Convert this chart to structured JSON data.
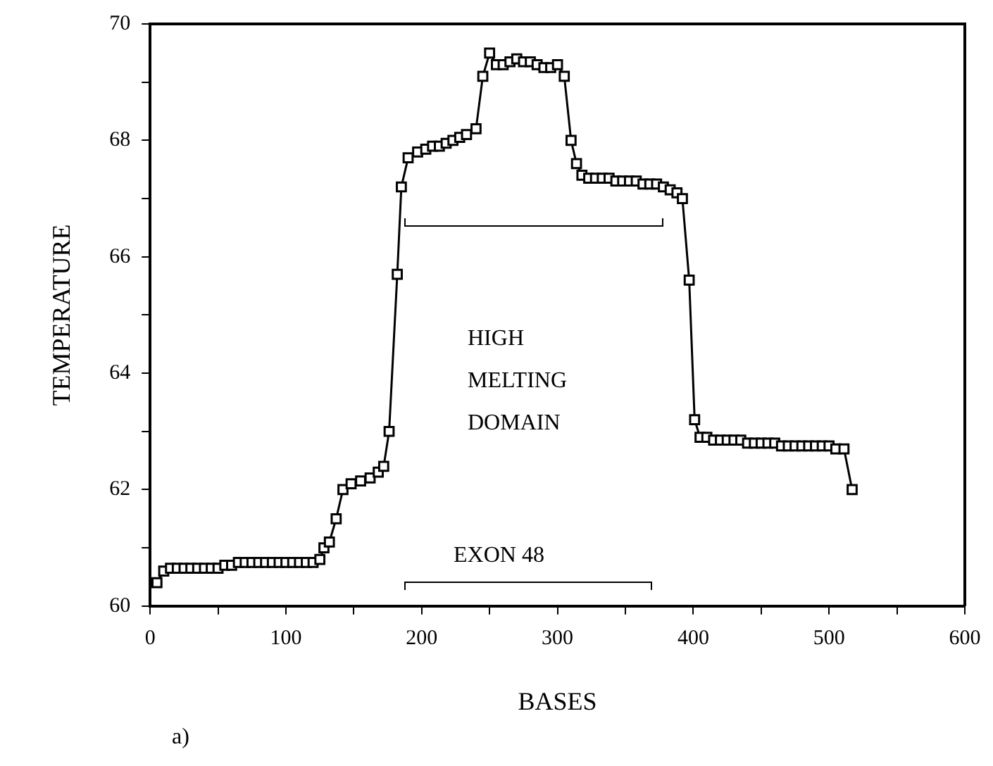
{
  "chart_data": {
    "type": "line",
    "xlabel": "BASES",
    "ylabel": "TEMPERATURE",
    "marker": "square",
    "legend": false,
    "grid": false,
    "x": [
      5,
      10,
      15,
      20,
      25,
      30,
      35,
      40,
      45,
      50,
      55,
      60,
      65,
      70,
      75,
      80,
      85,
      90,
      95,
      100,
      105,
      110,
      115,
      120,
      125,
      128,
      132,
      137,
      142,
      148,
      155,
      162,
      168,
      172,
      176,
      182,
      185,
      190,
      197,
      203,
      208,
      213,
      218,
      223,
      228,
      233,
      240,
      245,
      250,
      255,
      260,
      265,
      270,
      275,
      280,
      285,
      290,
      295,
      300,
      305,
      310,
      314,
      318,
      323,
      328,
      333,
      338,
      343,
      348,
      353,
      358,
      363,
      368,
      373,
      378,
      383,
      388,
      392,
      397,
      401,
      405,
      410,
      415,
      420,
      425,
      430,
      435,
      440,
      445,
      450,
      455,
      460,
      465,
      470,
      475,
      480,
      485,
      490,
      495,
      500,
      505,
      511,
      517
    ],
    "series": [
      {
        "color": "#000000",
        "values": [
          60.4,
          60.6,
          60.65,
          60.65,
          60.65,
          60.65,
          60.65,
          60.65,
          60.65,
          60.65,
          60.7,
          60.7,
          60.75,
          60.75,
          60.75,
          60.75,
          60.75,
          60.75,
          60.75,
          60.75,
          60.75,
          60.75,
          60.75,
          60.75,
          60.8,
          61.0,
          61.1,
          61.5,
          62.0,
          62.1,
          62.15,
          62.2,
          62.3,
          62.4,
          63.0,
          65.7,
          67.2,
          67.7,
          67.8,
          67.85,
          67.9,
          67.9,
          67.95,
          68.0,
          68.05,
          68.1,
          68.2,
          69.1,
          69.5,
          69.3,
          69.3,
          69.35,
          69.4,
          69.35,
          69.35,
          69.3,
          69.25,
          69.25,
          69.3,
          69.1,
          68.0,
          67.6,
          67.4,
          67.35,
          67.35,
          67.35,
          67.35,
          67.3,
          67.3,
          67.3,
          67.3,
          67.25,
          67.25,
          67.25,
          67.2,
          67.15,
          67.1,
          67.0,
          65.6,
          63.2,
          62.9,
          62.9,
          62.85,
          62.85,
          62.85,
          62.85,
          62.85,
          62.8,
          62.8,
          62.8,
          62.8,
          62.8,
          62.75,
          62.75,
          62.75,
          62.75,
          62.75,
          62.75,
          62.75,
          62.75,
          62.7,
          62.7,
          62.0
        ]
      }
    ],
    "xlim": [
      0,
      600
    ],
    "xticks": [
      0,
      {
        "value": 50,
        "label": null
      },
      100,
      {
        "value": 150,
        "label": null
      },
      200,
      {
        "value": 250,
        "label": null
      },
      300,
      {
        "value": 350,
        "label": null
      },
      400,
      {
        "value": 450,
        "label": null
      },
      500,
      {
        "value": 550,
        "label": null
      },
      600
    ],
    "ylim": [
      60,
      70
    ],
    "yticks": [
      60,
      {
        "value": 61,
        "label": null
      },
      62,
      {
        "value": 63,
        "label": null
      },
      64,
      {
        "value": 65,
        "label": null
      },
      66,
      {
        "value": 67,
        "label": null
      },
      68,
      {
        "value": 69,
        "label": null
      },
      70
    ],
    "annotations": [
      "HIGH\nMELTING\nDOMAIN",
      "EXON 48",
      "a)"
    ]
  }
}
